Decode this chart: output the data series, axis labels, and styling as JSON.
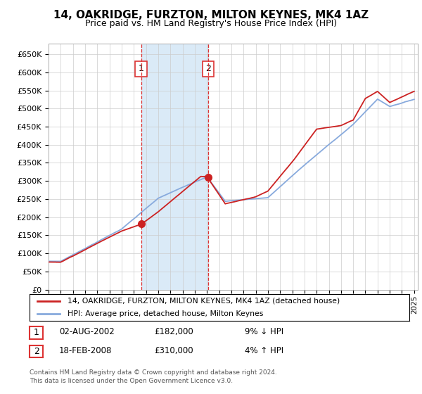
{
  "title": "14, OAKRIDGE, FURZTON, MILTON KEYNES, MK4 1AZ",
  "subtitle": "Price paid vs. HM Land Registry's House Price Index (HPI)",
  "ylim": [
    0,
    680000
  ],
  "yticks": [
    0,
    50000,
    100000,
    150000,
    200000,
    250000,
    300000,
    350000,
    400000,
    450000,
    500000,
    550000,
    600000,
    650000
  ],
  "sale1_date": 2002.6,
  "sale1_price": 182000,
  "sale2_date": 2008.1,
  "sale2_price": 310000,
  "shade_color": "#daeaf7",
  "vline_color": "#dd3333",
  "plot_bg": "#ffffff",
  "grid_color": "#cccccc",
  "hpi_color": "#88aadd",
  "price_color": "#cc2222",
  "legend_entry1": "14, OAKRIDGE, FURZTON, MILTON KEYNES, MK4 1AZ (detached house)",
  "legend_entry2": "HPI: Average price, detached house, Milton Keynes",
  "table_row1": [
    "1",
    "02-AUG-2002",
    "£182,000",
    "9% ↓ HPI"
  ],
  "table_row2": [
    "2",
    "18-FEB-2008",
    "£310,000",
    "4% ↑ HPI"
  ],
  "footer": "Contains HM Land Registry data © Crown copyright and database right 2024.\nThis data is licensed under the Open Government Licence v3.0.",
  "xstart": 1995.0,
  "xend": 2025.3
}
